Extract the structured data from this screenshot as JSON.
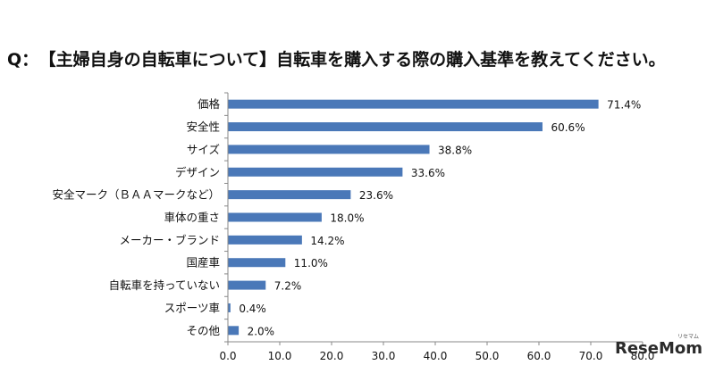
{
  "title": {
    "prefix": "Q：",
    "text": "【主婦自身の自転車について】自転車を購入する際の購入基準を教えてください。"
  },
  "watermark": {
    "text": "ReseMom",
    "sub": "リセマム"
  },
  "colors": {
    "bar": "#4a78b8"
  },
  "chart_data": {
    "type": "bar",
    "orientation": "horizontal",
    "categories": [
      "価格",
      "安全性",
      "サイズ",
      "デザイン",
      "安全マーク（ＢＡＡマークなど）",
      "車体の重さ",
      "メーカー・ブランド",
      "国産車",
      "自転車を持っていない",
      "スポーツ車",
      "その他"
    ],
    "values": [
      71.4,
      60.6,
      38.8,
      33.6,
      23.6,
      18.0,
      14.2,
      11.0,
      7.2,
      0.4,
      2.0
    ],
    "value_labels": [
      "71.4%",
      "60.6%",
      "38.8%",
      "33.6%",
      "23.6%",
      "18.0%",
      "14.2%",
      "11.0%",
      "7.2%",
      "0.4%",
      "2.0%"
    ],
    "xlim": [
      0,
      80
    ],
    "xticks": [
      "0.0",
      "10.0",
      "20.0",
      "30.0",
      "40.0",
      "50.0",
      "60.0",
      "70.0",
      "80.0"
    ],
    "grid": false,
    "legend": "none"
  }
}
